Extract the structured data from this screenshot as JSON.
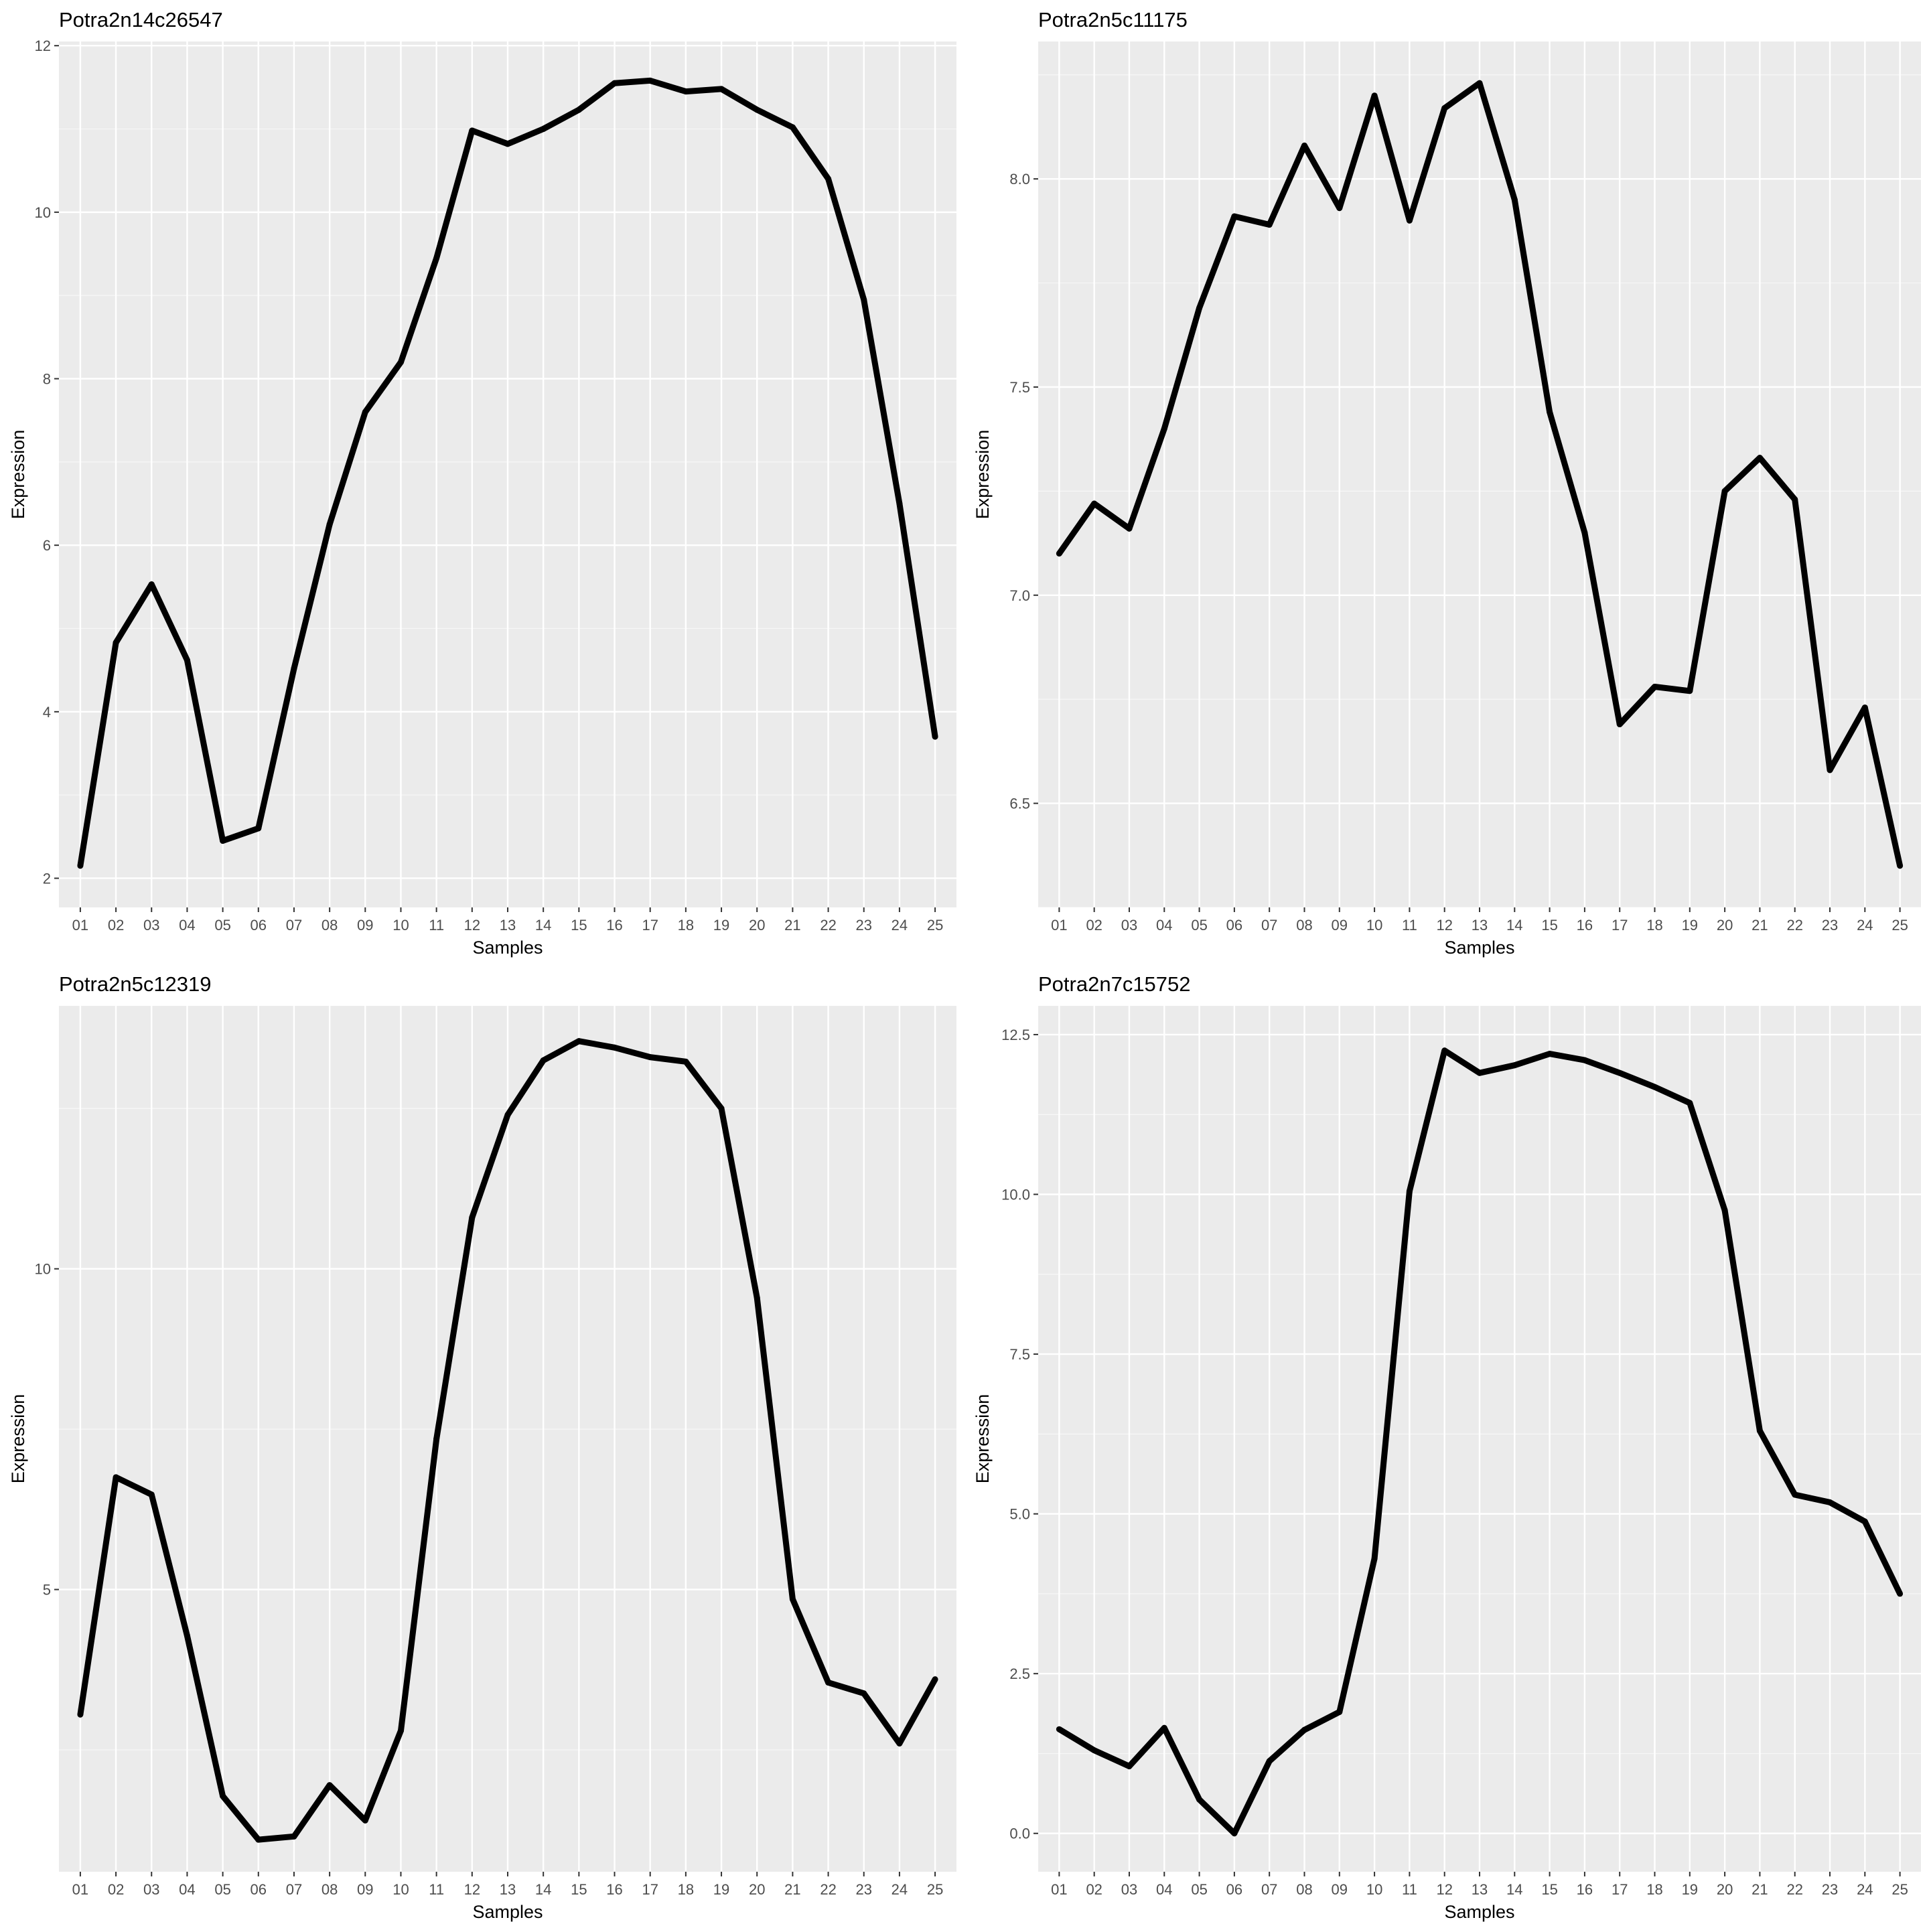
{
  "samples": [
    "01",
    "02",
    "03",
    "04",
    "05",
    "06",
    "07",
    "08",
    "09",
    "10",
    "11",
    "12",
    "13",
    "14",
    "15",
    "16",
    "17",
    "18",
    "19",
    "20",
    "21",
    "22",
    "23",
    "24",
    "25"
  ],
  "colors": {
    "panel_bg": "#ebebeb",
    "grid_major": "#ffffff",
    "line": "#000000",
    "tick_text": "#4d4d4d",
    "page_bg": "#ffffff"
  },
  "chart_data": [
    {
      "type": "line",
      "title": "Potra2n14c26547",
      "xlabel": "Samples",
      "ylabel": "Expression",
      "ylim": [
        1.65,
        12.05
      ],
      "yticks": [
        2,
        4,
        6,
        8,
        10,
        12
      ],
      "ytick_labels": [
        "2",
        "4",
        "6",
        "8",
        "10",
        "12"
      ],
      "grid": true,
      "values": [
        2.15,
        4.83,
        5.53,
        4.62,
        2.45,
        2.6,
        4.52,
        6.25,
        7.6,
        8.2,
        9.45,
        10.98,
        10.82,
        11.0,
        11.23,
        11.55,
        11.58,
        11.45,
        11.48,
        11.23,
        11.02,
        10.4,
        8.95,
        6.5,
        3.7
      ]
    },
    {
      "type": "line",
      "title": "Potra2n5c11175",
      "xlabel": "Samples",
      "ylabel": "Expression",
      "ylim": [
        6.25,
        8.33
      ],
      "yticks": [
        6.5,
        7.0,
        7.5,
        8.0
      ],
      "ytick_labels": [
        "6.5",
        "7.0",
        "7.5",
        "8.0"
      ],
      "grid": true,
      "values": [
        7.1,
        7.22,
        7.16,
        7.4,
        7.69,
        7.91,
        7.89,
        8.08,
        7.93,
        8.2,
        7.9,
        8.17,
        8.23,
        7.95,
        7.44,
        7.15,
        6.69,
        6.78,
        6.77,
        7.25,
        7.33,
        7.23,
        6.58,
        6.73,
        6.35
      ]
    },
    {
      "type": "line",
      "title": "Potra2n5c12319",
      "xlabel": "Samples",
      "ylabel": "Expression",
      "ylim": [
        0.6,
        14.1
      ],
      "yticks": [
        5,
        10
      ],
      "ytick_labels": [
        "5",
        "10"
      ],
      "grid": true,
      "values": [
        3.05,
        6.75,
        6.48,
        4.28,
        1.78,
        1.1,
        1.15,
        1.95,
        1.4,
        2.8,
        7.35,
        10.8,
        12.4,
        13.25,
        13.55,
        13.45,
        13.3,
        13.23,
        12.5,
        9.55,
        4.85,
        3.55,
        3.38,
        2.6,
        3.6
      ]
    },
    {
      "type": "line",
      "title": "Potra2n7c15752",
      "xlabel": "Samples",
      "ylabel": "Expression",
      "ylim": [
        -0.6,
        12.95
      ],
      "yticks": [
        0.0,
        2.5,
        5.0,
        7.5,
        10.0,
        12.5
      ],
      "ytick_labels": [
        "0.0",
        "2.5",
        "5.0",
        "7.5",
        "10.0",
        "12.5"
      ],
      "grid": true,
      "values": [
        1.63,
        1.3,
        1.05,
        1.65,
        0.53,
        0.0,
        1.13,
        1.62,
        1.9,
        4.3,
        10.05,
        12.25,
        11.9,
        12.02,
        12.2,
        12.1,
        11.9,
        11.68,
        11.43,
        9.75,
        6.3,
        5.3,
        5.18,
        4.88,
        3.75
      ]
    }
  ]
}
